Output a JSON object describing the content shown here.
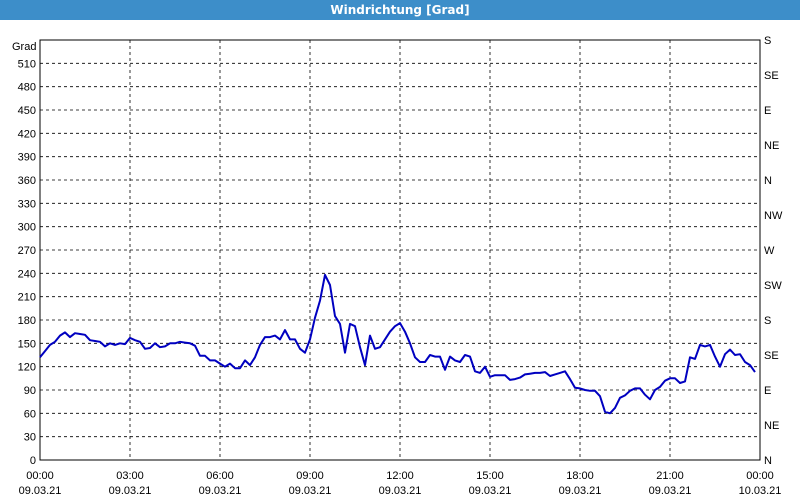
{
  "title": "Windrichtung [Grad]",
  "chart_data": {
    "type": "line",
    "title": "Windrichtung [Grad]",
    "ylabel": "Grad",
    "ylim": [
      0,
      540
    ],
    "yticks": [
      0,
      30,
      60,
      90,
      120,
      150,
      180,
      210,
      240,
      270,
      300,
      330,
      360,
      390,
      420,
      450,
      480,
      510
    ],
    "right_ticks": [
      {
        "value": 0,
        "label": "N"
      },
      {
        "value": 45,
        "label": "NE"
      },
      {
        "value": 90,
        "label": "E"
      },
      {
        "value": 135,
        "label": "SE"
      },
      {
        "value": 180,
        "label": "S"
      },
      {
        "value": 225,
        "label": "SW"
      },
      {
        "value": 270,
        "label": "W"
      },
      {
        "value": 315,
        "label": "NW"
      },
      {
        "value": 360,
        "label": "N"
      },
      {
        "value": 405,
        "label": "NE"
      },
      {
        "value": 450,
        "label": "E"
      },
      {
        "value": 495,
        "label": "SE"
      },
      {
        "value": 540,
        "label": "S"
      }
    ],
    "xlim": [
      "09.03.21 00:00",
      "10.03.21 00:00"
    ],
    "x_ticks": [
      {
        "time": "00:00",
        "date": "09.03.21"
      },
      {
        "time": "03:00",
        "date": "09.03.21"
      },
      {
        "time": "06:00",
        "date": "09.03.21"
      },
      {
        "time": "09:00",
        "date": "09.03.21"
      },
      {
        "time": "12:00",
        "date": "09.03.21"
      },
      {
        "time": "15:00",
        "date": "09.03.21"
      },
      {
        "time": "18:00",
        "date": "09.03.21"
      },
      {
        "time": "21:00",
        "date": "09.03.21"
      },
      {
        "time": "00:00",
        "date": "10.03.21"
      }
    ],
    "grid": true,
    "series": [
      {
        "color": "#0000c0",
        "points": [
          [
            "00:00",
            132
          ],
          [
            "00:10",
            140
          ],
          [
            "00:20",
            148
          ],
          [
            "00:30",
            152
          ],
          [
            "00:40",
            160
          ],
          [
            "00:50",
            164
          ],
          [
            "01:00",
            158
          ],
          [
            "01:10",
            163
          ],
          [
            "01:20",
            162
          ],
          [
            "01:30",
            161
          ],
          [
            "01:40",
            154
          ],
          [
            "01:50",
            153
          ],
          [
            "02:00",
            152
          ],
          [
            "02:10",
            146
          ],
          [
            "02:20",
            150
          ],
          [
            "02:30",
            148
          ],
          [
            "02:40",
            150
          ],
          [
            "02:50",
            149
          ],
          [
            "03:00",
            157
          ],
          [
            "03:10",
            154
          ],
          [
            "03:20",
            152
          ],
          [
            "03:30",
            143
          ],
          [
            "03:40",
            144
          ],
          [
            "03:50",
            150
          ],
          [
            "04:00",
            145
          ],
          [
            "04:10",
            146
          ],
          [
            "04:20",
            150
          ],
          [
            "04:30",
            150
          ],
          [
            "04:40",
            152
          ],
          [
            "04:50",
            151
          ],
          [
            "05:00",
            150
          ],
          [
            "05:10",
            147
          ],
          [
            "05:20",
            134
          ],
          [
            "05:30",
            134
          ],
          [
            "05:40",
            128
          ],
          [
            "05:50",
            128
          ],
          [
            "06:00",
            124
          ],
          [
            "06:10",
            120
          ],
          [
            "06:20",
            124
          ],
          [
            "06:30",
            118
          ],
          [
            "06:40",
            118
          ],
          [
            "06:50",
            128
          ],
          [
            "07:00",
            122
          ],
          [
            "07:10",
            132
          ],
          [
            "07:20",
            148
          ],
          [
            "07:30",
            158
          ],
          [
            "07:40",
            158
          ],
          [
            "07:50",
            160
          ],
          [
            "08:00",
            155
          ],
          [
            "08:10",
            167
          ],
          [
            "08:20",
            155
          ],
          [
            "08:30",
            155
          ],
          [
            "08:40",
            143
          ],
          [
            "08:50",
            138
          ],
          [
            "09:00",
            155
          ],
          [
            "09:10",
            183
          ],
          [
            "09:20",
            205
          ],
          [
            "09:30",
            238
          ],
          [
            "09:40",
            225
          ],
          [
            "09:50",
            185
          ],
          [
            "10:00",
            175
          ],
          [
            "10:10",
            138
          ],
          [
            "10:20",
            175
          ],
          [
            "10:30",
            172
          ],
          [
            "10:40",
            145
          ],
          [
            "10:50",
            122
          ],
          [
            "11:00",
            160
          ],
          [
            "11:10",
            143
          ],
          [
            "11:20",
            145
          ],
          [
            "11:30",
            155
          ],
          [
            "11:40",
            165
          ],
          [
            "11:50",
            172
          ],
          [
            "12:00",
            176
          ],
          [
            "12:10",
            165
          ],
          [
            "12:20",
            150
          ],
          [
            "12:30",
            132
          ],
          [
            "12:40",
            126
          ],
          [
            "12:50",
            126
          ],
          [
            "13:00",
            135
          ],
          [
            "13:10",
            133
          ],
          [
            "13:20",
            133
          ],
          [
            "13:30",
            116
          ],
          [
            "13:40",
            133
          ],
          [
            "13:50",
            128
          ],
          [
            "14:00",
            126
          ],
          [
            "14:10",
            135
          ],
          [
            "14:20",
            133
          ],
          [
            "14:30",
            114
          ],
          [
            "14:40",
            112
          ],
          [
            "14:50",
            120
          ],
          [
            "15:00",
            107
          ],
          [
            "15:10",
            109
          ],
          [
            "15:20",
            109
          ],
          [
            "15:30",
            109
          ],
          [
            "15:40",
            103
          ],
          [
            "15:50",
            104
          ],
          [
            "16:00",
            106
          ],
          [
            "16:10",
            110
          ],
          [
            "16:20",
            111
          ],
          [
            "16:30",
            112
          ],
          [
            "16:40",
            112
          ],
          [
            "16:50",
            113
          ],
          [
            "17:00",
            108
          ],
          [
            "17:10",
            110
          ],
          [
            "17:20",
            112
          ],
          [
            "17:30",
            114
          ],
          [
            "17:40",
            104
          ],
          [
            "17:50",
            93
          ],
          [
            "18:00",
            92
          ],
          [
            "18:10",
            90
          ],
          [
            "18:20",
            89
          ],
          [
            "18:30",
            89
          ],
          [
            "18:40",
            82
          ],
          [
            "18:50",
            62
          ],
          [
            "19:00",
            60
          ],
          [
            "19:10",
            67
          ],
          [
            "19:20",
            80
          ],
          [
            "19:30",
            83
          ],
          [
            "19:40",
            89
          ],
          [
            "19:50",
            92
          ],
          [
            "20:00",
            92
          ],
          [
            "20:10",
            84
          ],
          [
            "20:20",
            78
          ],
          [
            "20:30",
            90
          ],
          [
            "20:40",
            94
          ],
          [
            "20:50",
            102
          ],
          [
            "21:00",
            105
          ],
          [
            "21:10",
            105
          ],
          [
            "21:20",
            99
          ],
          [
            "21:30",
            101
          ],
          [
            "21:40",
            132
          ],
          [
            "21:50",
            130
          ],
          [
            "22:00",
            148
          ],
          [
            "22:10",
            146
          ],
          [
            "22:20",
            148
          ],
          [
            "22:30",
            133
          ],
          [
            "22:40",
            120
          ],
          [
            "22:50",
            136
          ],
          [
            "23:00",
            142
          ],
          [
            "23:10",
            135
          ],
          [
            "23:20",
            136
          ],
          [
            "23:30",
            126
          ],
          [
            "23:40",
            122
          ],
          [
            "23:50",
            113
          ]
        ]
      }
    ]
  }
}
